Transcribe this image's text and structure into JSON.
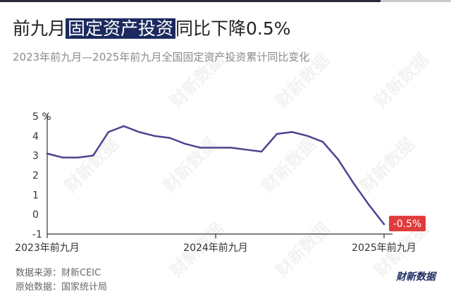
{
  "header": {
    "title_before": "前九月",
    "title_highlight": "固定资产投资",
    "title_after": "同比下降0.5%",
    "subtitle": "2023年前九月—2025年前九月全国固定资产投资累计同比变化"
  },
  "footer": {
    "source": "数据来源：财新CEIC",
    "raw": "原始数据：国家统计局",
    "brand": "财新数据"
  },
  "watermark": "财新数据",
  "colors": {
    "line": "#4a4590",
    "callout": "#e03b3b",
    "title_highlight_bg": "#1b2a5e",
    "grid": "#dddddd"
  },
  "chart_data": {
    "type": "line",
    "title": "前九月固定资产投资同比下降0.5%",
    "unit_label": "%",
    "x": [
      "2023-09",
      "2023-10",
      "2023-11",
      "2023-12",
      "2024-02",
      "2024-03",
      "2024-04",
      "2024-05",
      "2024-06",
      "2024-07",
      "2024-08",
      "2024-09",
      "2024-10",
      "2024-11",
      "2024-12",
      "2025-02",
      "2025-03",
      "2025-04",
      "2025-05",
      "2025-06",
      "2025-07",
      "2025-08",
      "2025-09"
    ],
    "series": [
      {
        "values": [
          3.1,
          2.9,
          2.9,
          3.0,
          4.2,
          4.5,
          4.2,
          4.0,
          3.9,
          3.6,
          3.4,
          3.4,
          3.4,
          3.3,
          3.2,
          4.1,
          4.2,
          4.0,
          3.7,
          2.8,
          1.6,
          0.5,
          -0.5
        ]
      }
    ],
    "x_tick_labels": [
      "2023年前九月",
      "2024年前九月",
      "2025年前九月"
    ],
    "y_ticks": [
      -1,
      0,
      1,
      2,
      3,
      4,
      5
    ],
    "y_tick_labels": [
      "-1",
      "0",
      "1",
      "2",
      "3",
      "4",
      "5 %"
    ],
    "ylim": [
      -1,
      5
    ],
    "grid": false,
    "annotation": {
      "text": "-0.5%",
      "x": "2025-09",
      "y": -0.5
    }
  }
}
